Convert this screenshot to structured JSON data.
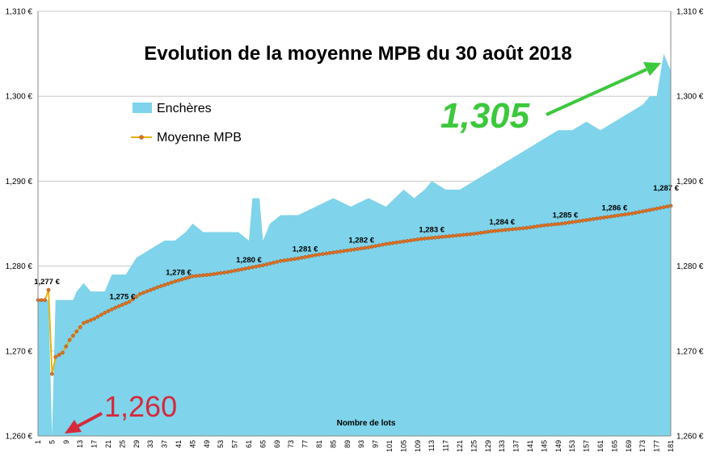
{
  "chart_data": {
    "type": "area",
    "title": "Evolution de la moyenne MPB du 30 août 2018",
    "xlabel": "Nombre de lots",
    "x_range": [
      1,
      181
    ],
    "x_tick_labels": [
      1,
      5,
      9,
      13,
      17,
      21,
      25,
      29,
      33,
      37,
      41,
      45,
      49,
      53,
      57,
      61,
      65,
      69,
      73,
      77,
      81,
      85,
      89,
      93,
      97,
      101,
      105,
      109,
      113,
      117,
      121,
      125,
      129,
      133,
      137,
      141,
      145,
      149,
      153,
      157,
      161,
      165,
      169,
      173,
      177,
      181
    ],
    "ylim": [
      1.26,
      1.31
    ],
    "y_tick_labels": [
      "1,260 €",
      "1,270 €",
      "1,280 €",
      "1,290 €",
      "1,300 €",
      "1,310 €"
    ],
    "y_axes": "left and right",
    "grid": "horizontal",
    "legend_position": "top-left",
    "series": [
      {
        "name": "Enchères",
        "kind": "area",
        "color": "#7fd3ea",
        "keypoints": [
          [
            1,
            1.276
          ],
          [
            4,
            1.276
          ],
          [
            5,
            1.26
          ],
          [
            6,
            1.276
          ],
          [
            11,
            1.276
          ],
          [
            12,
            1.277
          ],
          [
            14,
            1.278
          ],
          [
            16,
            1.277
          ],
          [
            20,
            1.277
          ],
          [
            22,
            1.279
          ],
          [
            26,
            1.279
          ],
          [
            29,
            1.281
          ],
          [
            33,
            1.282
          ],
          [
            37,
            1.283
          ],
          [
            40,
            1.283
          ],
          [
            43,
            1.284
          ],
          [
            45,
            1.285
          ],
          [
            48,
            1.284
          ],
          [
            53,
            1.284
          ],
          [
            58,
            1.284
          ],
          [
            61,
            1.283
          ],
          [
            62,
            1.288
          ],
          [
            64,
            1.288
          ],
          [
            65,
            1.283
          ],
          [
            67,
            1.285
          ],
          [
            70,
            1.286
          ],
          [
            75,
            1.286
          ],
          [
            80,
            1.287
          ],
          [
            85,
            1.288
          ],
          [
            90,
            1.287
          ],
          [
            95,
            1.288
          ],
          [
            100,
            1.287
          ],
          [
            105,
            1.289
          ],
          [
            108,
            1.288
          ],
          [
            111,
            1.289
          ],
          [
            113,
            1.29
          ],
          [
            117,
            1.289
          ],
          [
            121,
            1.289
          ],
          [
            125,
            1.29
          ],
          [
            129,
            1.291
          ],
          [
            133,
            1.292
          ],
          [
            137,
            1.293
          ],
          [
            141,
            1.294
          ],
          [
            145,
            1.295
          ],
          [
            149,
            1.296
          ],
          [
            153,
            1.296
          ],
          [
            157,
            1.297
          ],
          [
            161,
            1.296
          ],
          [
            165,
            1.297
          ],
          [
            169,
            1.298
          ],
          [
            173,
            1.299
          ],
          [
            175,
            1.3
          ],
          [
            177,
            1.3
          ],
          [
            179,
            1.305
          ],
          [
            181,
            1.303
          ]
        ]
      },
      {
        "name": "Moyenne MPB",
        "kind": "line",
        "color": "#e8b000",
        "marker_color": "#e07020",
        "keypoints": [
          [
            1,
            1.276
          ],
          [
            3,
            1.276
          ],
          [
            4,
            1.2772
          ],
          [
            5,
            1.2673
          ],
          [
            6,
            1.2693
          ],
          [
            8,
            1.2698
          ],
          [
            10,
            1.2713
          ],
          [
            12,
            1.2723
          ],
          [
            14,
            1.2733
          ],
          [
            17,
            1.2738
          ],
          [
            20,
            1.2745
          ],
          [
            23,
            1.2751
          ],
          [
            27,
            1.2758
          ],
          [
            30,
            1.2767
          ],
          [
            35,
            1.2775
          ],
          [
            40,
            1.2782
          ],
          [
            45,
            1.2788
          ],
          [
            50,
            1.279
          ],
          [
            55,
            1.2793
          ],
          [
            60,
            1.2797
          ],
          [
            65,
            1.2801
          ],
          [
            70,
            1.2806
          ],
          [
            75,
            1.2809
          ],
          [
            80,
            1.2813
          ],
          [
            85,
            1.2816
          ],
          [
            90,
            1.2819
          ],
          [
            95,
            1.2822
          ],
          [
            100,
            1.2826
          ],
          [
            105,
            1.2829
          ],
          [
            110,
            1.2832
          ],
          [
            115,
            1.2834
          ],
          [
            120,
            1.2836
          ],
          [
            125,
            1.2838
          ],
          [
            130,
            1.2841
          ],
          [
            135,
            1.2843
          ],
          [
            140,
            1.2845
          ],
          [
            145,
            1.2848
          ],
          [
            150,
            1.285
          ],
          [
            155,
            1.2853
          ],
          [
            160,
            1.2856
          ],
          [
            165,
            1.2859
          ],
          [
            170,
            1.2862
          ],
          [
            175,
            1.2866
          ],
          [
            181,
            1.2871
          ]
        ]
      }
    ],
    "data_labels": [
      {
        "x": 4,
        "y": 1.277,
        "text": "1,277 €"
      },
      {
        "x": 25,
        "y": 1.275,
        "text": "1,275 €"
      },
      {
        "x": 41,
        "y": 1.278,
        "text": "1,278 €"
      },
      {
        "x": 61,
        "y": 1.28,
        "text": "1,280 €"
      },
      {
        "x": 77,
        "y": 1.281,
        "text": "1,281 €"
      },
      {
        "x": 93,
        "y": 1.282,
        "text": "1,282 €"
      },
      {
        "x": 113,
        "y": 1.283,
        "text": "1,283 €"
      },
      {
        "x": 133,
        "y": 1.284,
        "text": "1,284 €"
      },
      {
        "x": 151,
        "y": 1.285,
        "text": "1,285 €"
      },
      {
        "x": 165,
        "y": 1.286,
        "text": "1,286 €"
      },
      {
        "x": 181,
        "y": 1.287,
        "text": "1,287 €"
      }
    ],
    "annotations": {
      "max": {
        "text": "1,305",
        "color": "#3cc83c"
      },
      "min": {
        "text": "1,260",
        "color": "#d42a3c"
      }
    }
  }
}
